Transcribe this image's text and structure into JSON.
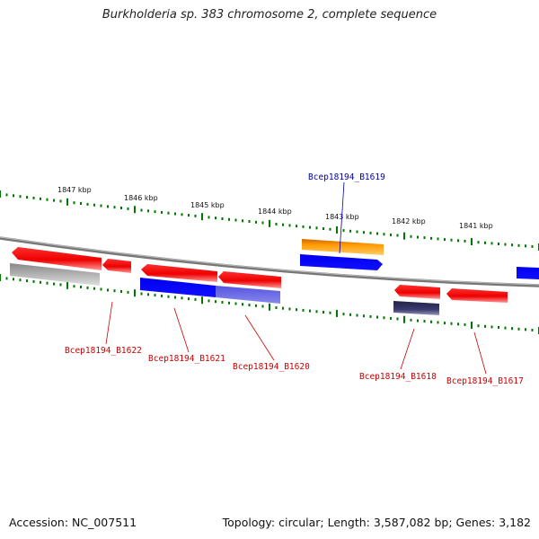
{
  "title": "Burkholderia sp. 383 chromosome 2, complete sequence",
  "footer": {
    "accession": "Accession: NC_007511",
    "summary": "Topology: circular; Length: 3,587,082 bp; Genes: 3,182"
  },
  "scale": [
    {
      "label": "1847 kbp"
    },
    {
      "label": "1846 kbp"
    },
    {
      "label": "1845 kbp"
    },
    {
      "label": "1844 kbp"
    },
    {
      "label": "1843 kbp"
    },
    {
      "label": "1842 kbp"
    },
    {
      "label": "1841 kbp"
    }
  ],
  "genes": [
    {
      "name": "Bcep18194_B1619",
      "color": "#0000aa"
    },
    {
      "name": "Bcep18194_B1622",
      "color": "#cc0000"
    },
    {
      "name": "Bcep18194_B1621",
      "color": "#cc0000"
    },
    {
      "name": "Bcep18194_B1620",
      "color": "#cc0000"
    },
    {
      "name": "Bcep18194_B1618",
      "color": "#cc0000"
    },
    {
      "name": "Bcep18194_B1617",
      "color": "#cc0000"
    }
  ],
  "colors": {
    "forward_cds": "#ee0000",
    "reverse_cds": "#0000ee",
    "orange_feature": "#ff9900",
    "gray_feature": "#a0a0a0",
    "dark_feature": "#333366",
    "light_blue_feature": "#6666dd",
    "tick": "#007700",
    "backbone": "#888888"
  }
}
